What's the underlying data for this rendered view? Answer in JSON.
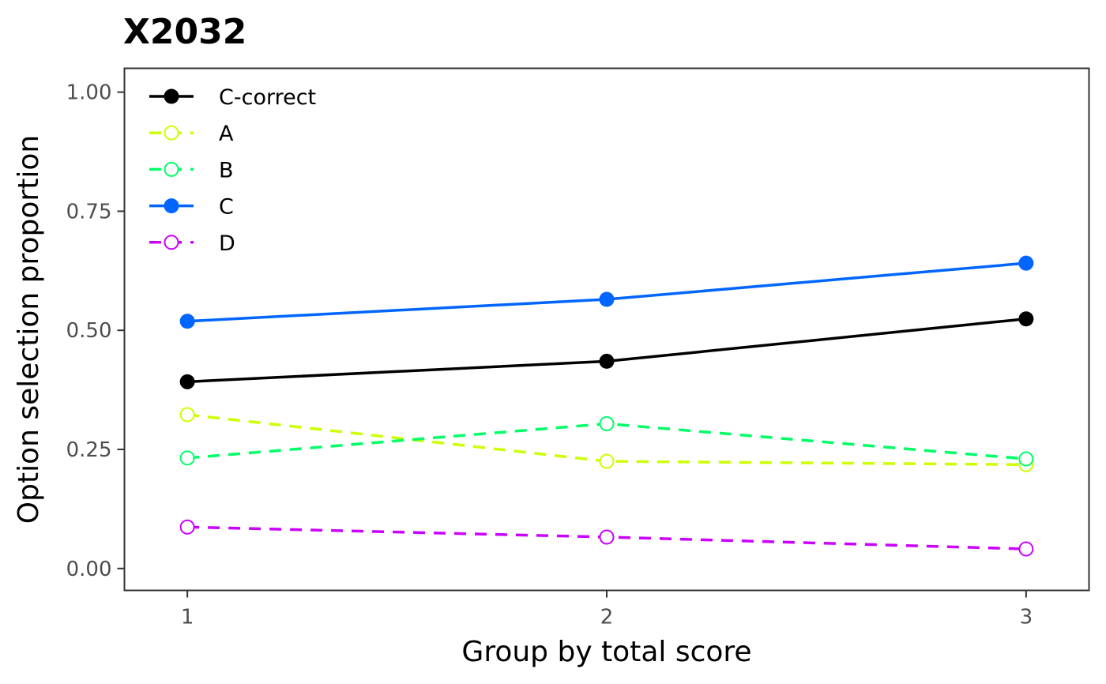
{
  "chart_data": {
    "type": "line",
    "title": "X2032",
    "xlabel": "Group by total score",
    "ylabel": "Option selection proportion",
    "x": [
      1,
      2,
      3
    ],
    "x_tick_labels": [
      "1",
      "2",
      "3"
    ],
    "xlim": [
      0.85,
      3.15
    ],
    "ylim": [
      -0.046,
      1.05
    ],
    "y_ticks": [
      0.0,
      0.25,
      0.5,
      0.75,
      1.0
    ],
    "y_tick_labels": [
      "0.00",
      "0.25",
      "0.50",
      "0.75",
      "1.00"
    ],
    "grid": false,
    "legend_position": "top-left inside",
    "series": [
      {
        "name": "C-correct",
        "values": [
          0.392,
          0.435,
          0.524
        ],
        "color": "#000000",
        "dashed": false,
        "filled": true
      },
      {
        "name": "A",
        "values": [
          0.323,
          0.225,
          0.218
        ],
        "color": "#CCFF00",
        "dashed": true,
        "filled": false
      },
      {
        "name": "B",
        "values": [
          0.232,
          0.304,
          0.23
        ],
        "color": "#00FF66",
        "dashed": true,
        "filled": false
      },
      {
        "name": "C",
        "values": [
          0.519,
          0.565,
          0.641
        ],
        "color": "#0066FF",
        "dashed": false,
        "filled": true
      },
      {
        "name": "D",
        "values": [
          0.087,
          0.066,
          0.041
        ],
        "color": "#CC00FF",
        "dashed": true,
        "filled": false
      }
    ]
  }
}
